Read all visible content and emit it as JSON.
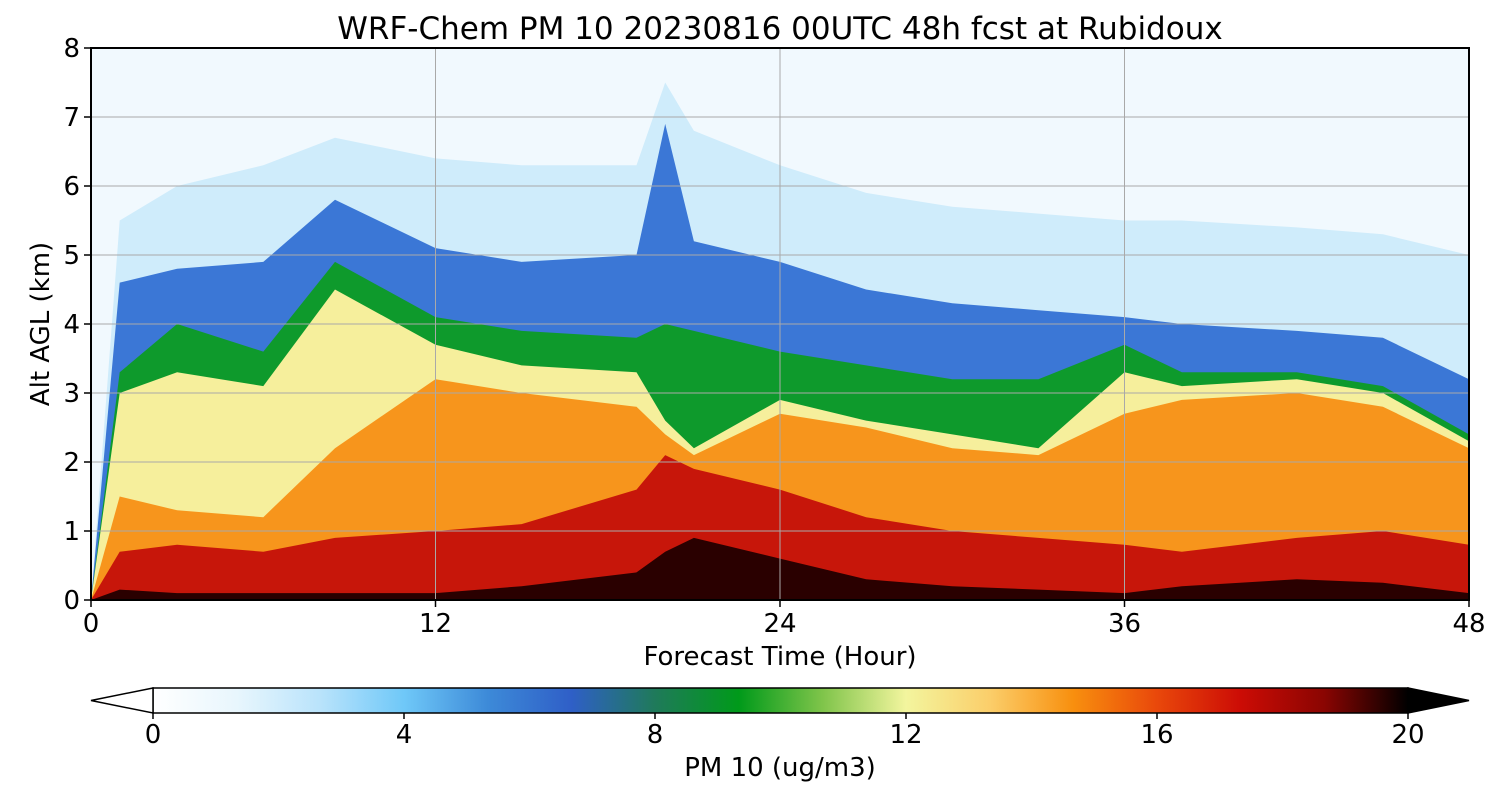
{
  "chart_data": {
    "type": "heatmap",
    "title": "WRF-Chem PM 10  20230816 00UTC 48h fcst at Rubidoux",
    "xlabel": "Forecast Time (Hour)",
    "ylabel": "Alt AGL (km)",
    "xlim": [
      0,
      48
    ],
    "ylim": [
      0,
      8
    ],
    "xticks": [
      0,
      12,
      24,
      36,
      48
    ],
    "yticks": [
      0,
      1,
      2,
      3,
      4,
      5,
      6,
      7,
      8
    ],
    "grid": true,
    "colorbar": {
      "label": "PM 10  (ug/m3)",
      "min": 0,
      "max": 20,
      "ticks": [
        0,
        4,
        8,
        12,
        16,
        20
      ],
      "extend": "both",
      "colors": [
        "#ffffff",
        "#e8f6fd",
        "#b9e3fb",
        "#6fc8f8",
        "#3d8ad8",
        "#2f5fc7",
        "#1f7a5a",
        "#009a1a",
        "#7fc44a",
        "#f3f59e",
        "#fbce6a",
        "#f88f0e",
        "#e9480b",
        "#cc0c05",
        "#8a0502",
        "#000000"
      ]
    },
    "layers": {
      "x": [
        0,
        1,
        3,
        6,
        8.5,
        12,
        15,
        19,
        20,
        21,
        24,
        27,
        30,
        33,
        36,
        38,
        42,
        45,
        48
      ],
      "z_top": [
        0,
        5.5,
        6.0,
        6.3,
        6.7,
        6.4,
        6.3,
        6.3,
        7.5,
        6.8,
        6.3,
        5.9,
        5.7,
        5.6,
        5.5,
        5.5,
        5.4,
        5.3,
        5.0
      ],
      "z_blue": [
        0,
        4.6,
        4.8,
        4.9,
        5.8,
        5.1,
        4.9,
        5.0,
        6.9,
        5.2,
        4.9,
        4.5,
        4.3,
        4.2,
        4.1,
        4.0,
        3.9,
        3.8,
        3.2
      ],
      "z_green": [
        0,
        3.3,
        4.0,
        3.6,
        4.9,
        4.1,
        3.9,
        3.8,
        4.0,
        3.9,
        3.6,
        3.4,
        3.2,
        3.2,
        3.7,
        3.3,
        3.3,
        3.1,
        2.4
      ],
      "z_yellow": [
        0,
        3.0,
        3.3,
        3.1,
        4.5,
        3.7,
        3.4,
        3.3,
        2.6,
        2.2,
        2.9,
        2.6,
        2.4,
        2.2,
        3.3,
        3.1,
        3.2,
        3.0,
        2.3
      ],
      "z_orange": [
        0,
        1.5,
        1.3,
        1.2,
        2.2,
        3.2,
        3.0,
        2.8,
        2.4,
        2.1,
        2.7,
        2.5,
        2.2,
        2.1,
        2.7,
        2.9,
        3.0,
        2.8,
        2.2
      ],
      "z_darkred": [
        0,
        0.7,
        0.8,
        0.7,
        0.9,
        1.0,
        1.1,
        1.6,
        2.1,
        1.9,
        1.6,
        1.2,
        1.0,
        0.9,
        0.8,
        0.7,
        0.9,
        1.0,
        0.8
      ],
      "z_black": [
        0,
        0.15,
        0.1,
        0.1,
        0.1,
        0.1,
        0.2,
        0.4,
        0.7,
        0.9,
        0.6,
        0.3,
        0.2,
        0.15,
        0.1,
        0.2,
        0.3,
        0.25,
        0.1
      ]
    }
  }
}
